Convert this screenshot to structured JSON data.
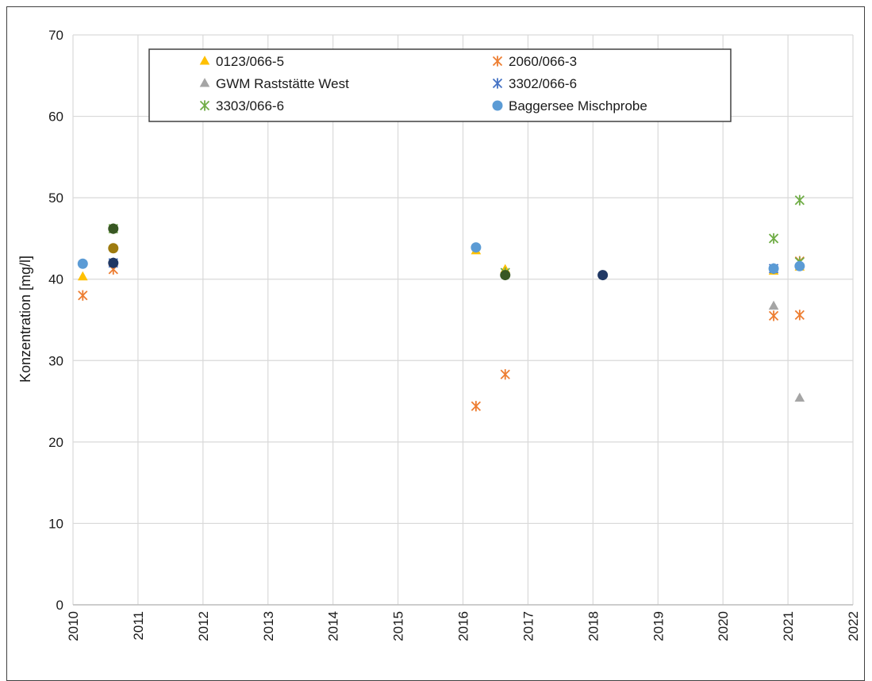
{
  "chart_data": {
    "type": "scatter",
    "ylabel": "Konzentration [mg/l]",
    "xlim": [
      2010,
      2022
    ],
    "ylim": [
      0,
      70
    ],
    "x_ticks": [
      "2010",
      "2011",
      "2012",
      "2013",
      "2014",
      "2015",
      "2016",
      "2017",
      "2018",
      "2019",
      "2020",
      "2021",
      "2022"
    ],
    "y_ticks": [
      "0",
      "10",
      "20",
      "30",
      "40",
      "50",
      "60",
      "70"
    ],
    "grid": true,
    "legend_position": "top",
    "series": [
      {
        "name": "0123/066-5",
        "marker": "triangle",
        "color": "#FFC000",
        "points": [
          [
            2010.15,
            40.3
          ],
          [
            2016.2,
            43.5
          ],
          [
            2016.65,
            41.2
          ],
          [
            2020.78,
            41.0
          ],
          [
            2021.18,
            41.5
          ]
        ]
      },
      {
        "name": "2060/066-3",
        "marker": "asterisk",
        "color": "#ED7D31",
        "points": [
          [
            2010.15,
            38.0
          ],
          [
            2010.62,
            41.2
          ],
          [
            2016.2,
            24.4
          ],
          [
            2016.65,
            28.3
          ],
          [
            2020.78,
            35.5
          ],
          [
            2021.18,
            35.6
          ],
          [
            2021.18,
            42.2
          ]
        ]
      },
      {
        "name": "GWM Raststätte West",
        "marker": "triangle",
        "color": "#A5A5A5",
        "points": [
          [
            2020.78,
            36.7
          ],
          [
            2021.18,
            25.4
          ]
        ]
      },
      {
        "name": "3302/066-6",
        "marker": "asterisk",
        "color": "#4472C4",
        "points": [
          [
            2010.62,
            42.0
          ],
          [
            2020.78,
            41.3
          ]
        ]
      },
      {
        "name": "3303/066-6",
        "marker": "asterisk",
        "color": "#70AD47",
        "points": [
          [
            2010.62,
            46.2
          ],
          [
            2016.65,
            40.8
          ],
          [
            2020.78,
            45.0
          ],
          [
            2021.18,
            49.7
          ],
          [
            2021.18,
            42.1
          ]
        ]
      },
      {
        "name": "Baggersee Mischprobe",
        "marker": "circle",
        "color": "#5B9BD5",
        "points": [
          [
            2010.15,
            41.9
          ],
          [
            2016.2,
            43.9
          ],
          [
            2020.78,
            41.3
          ],
          [
            2021.18,
            41.6
          ]
        ]
      },
      {
        "name": "",
        "marker": "circle",
        "color": "#9E7B0F",
        "points": [
          [
            2010.62,
            43.8
          ]
        ]
      },
      {
        "name": "",
        "marker": "circle",
        "color": "#385723",
        "points": [
          [
            2010.62,
            46.2
          ],
          [
            2016.65,
            40.5
          ]
        ]
      },
      {
        "name": "",
        "marker": "circle",
        "color": "#203864",
        "points": [
          [
            2010.62,
            42.0
          ],
          [
            2018.15,
            40.5
          ]
        ]
      }
    ]
  }
}
